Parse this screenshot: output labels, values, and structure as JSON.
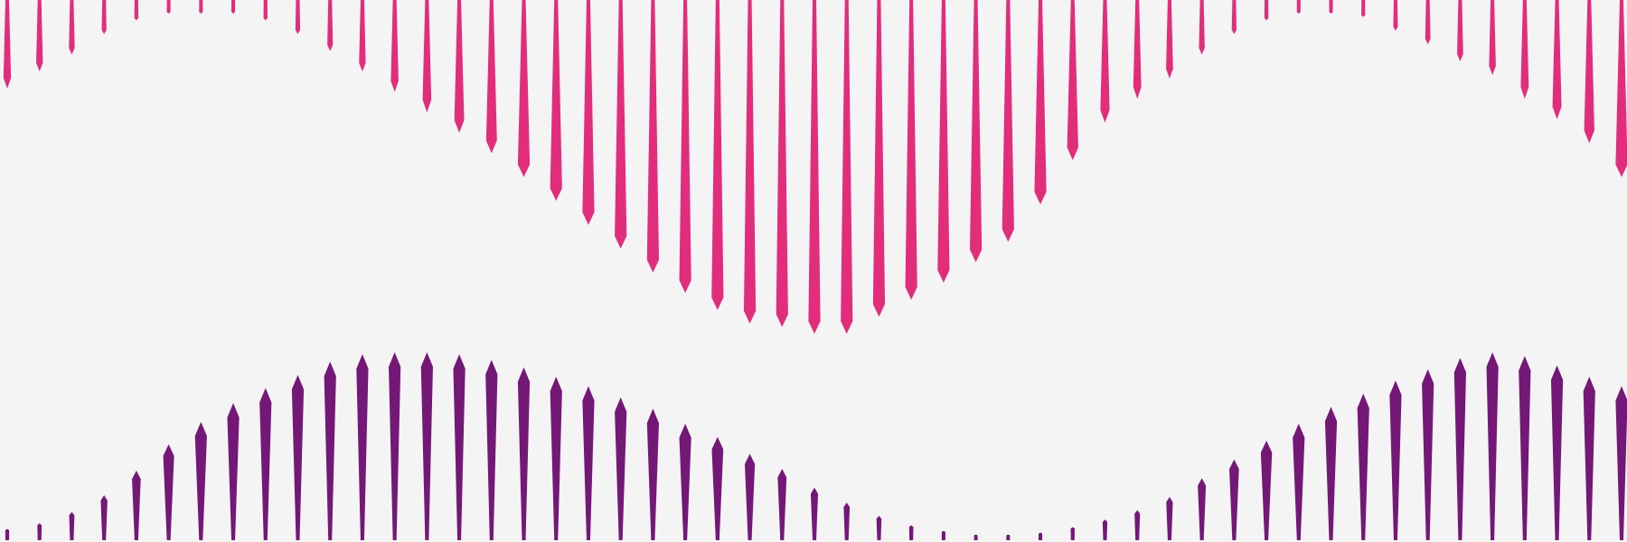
{
  "colors": {
    "background": "#f4f4f4",
    "top_series": "#e12d7c",
    "bottom_series": "#731877"
  },
  "pattern": {
    "column_count": 51,
    "top_series": {
      "name": "magenta-spikes",
      "direction": "down",
      "relative_lengths": [
        0.26,
        0.21,
        0.16,
        0.1,
        0.06,
        0.04,
        0.04,
        0.04,
        0.06,
        0.1,
        0.15,
        0.21,
        0.27,
        0.33,
        0.39,
        0.45,
        0.52,
        0.59,
        0.66,
        0.73,
        0.8,
        0.86,
        0.91,
        0.95,
        0.96,
        0.98,
        0.98,
        0.93,
        0.88,
        0.83,
        0.77,
        0.71,
        0.6,
        0.47,
        0.36,
        0.29,
        0.23,
        0.16,
        0.1,
        0.06,
        0.04,
        0.04,
        0.05,
        0.09,
        0.13,
        0.18,
        0.22,
        0.29,
        0.35,
        0.42,
        0.52
      ]
    },
    "bottom_series": {
      "name": "purple-spikes",
      "direction": "up",
      "relative_lengths": [
        0.06,
        0.09,
        0.15,
        0.24,
        0.37,
        0.51,
        0.63,
        0.73,
        0.81,
        0.88,
        0.95,
        0.99,
        1.0,
        1.0,
        0.99,
        0.96,
        0.92,
        0.87,
        0.82,
        0.76,
        0.7,
        0.62,
        0.55,
        0.46,
        0.38,
        0.28,
        0.2,
        0.13,
        0.08,
        0.05,
        0.03,
        0.03,
        0.04,
        0.07,
        0.11,
        0.16,
        0.23,
        0.33,
        0.43,
        0.53,
        0.62,
        0.71,
        0.78,
        0.85,
        0.91,
        0.97,
        1.0,
        0.98,
        0.93,
        0.87,
        0.82
      ]
    }
  }
}
